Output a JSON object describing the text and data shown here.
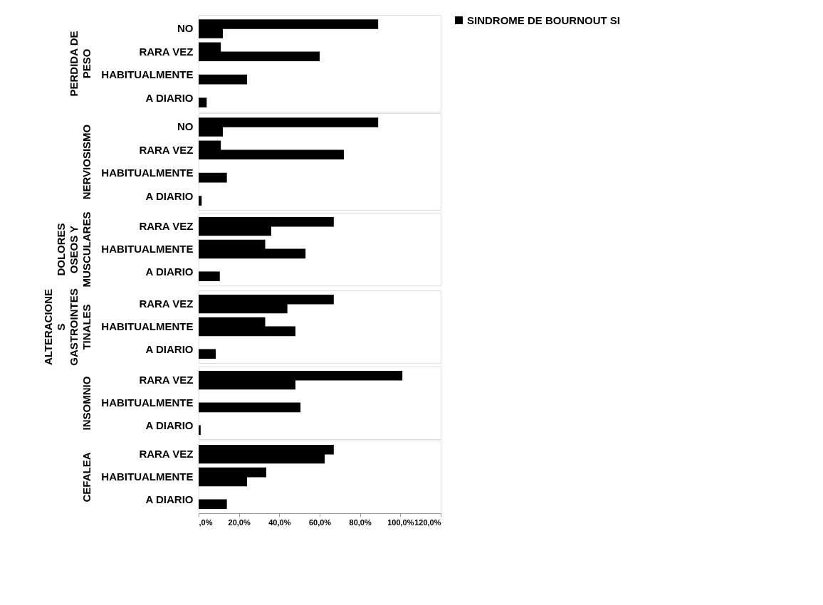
{
  "chart_data": [
    {
      "type": "bar",
      "orientation": "horizontal",
      "ylabel": "PERDIDA DE PESO",
      "categories": [
        "NO",
        "RARA VEZ",
        "HABITUALMENTE",
        "A DIARIO"
      ],
      "series": [
        {
          "color": "#000000",
          "values": [
            89,
            11,
            null,
            null
          ]
        },
        {
          "name": "SINDROME DE BOURNOUT SI",
          "color": "#000000",
          "values": [
            12,
            60,
            24,
            4
          ]
        }
      ],
      "xlim": [
        0,
        120
      ],
      "tick_labels": "y",
      "legend": "top right",
      "grid": false
    },
    {
      "type": "bar",
      "orientation": "horizontal",
      "ylabel": "NERVIOSISMO",
      "categories": [
        "NO",
        "RARA VEZ",
        "HABITUALMENTE",
        "A DIARIO"
      ],
      "series": [
        {
          "color": "#000000",
          "values": [
            89,
            11,
            null,
            null
          ]
        },
        {
          "color": "#000000",
          "values": [
            12,
            72,
            14,
            1.5
          ]
        }
      ],
      "xlim": [
        0,
        120
      ],
      "tick_labels": "y",
      "grid": false
    },
    {
      "type": "bar",
      "orientation": "horizontal",
      "ylabel": "DOLORES OSEOS Y MUSCULARES",
      "categories": [
        "RARA VEZ",
        "HABITUALMENTE",
        "A DIARIO"
      ],
      "series": [
        {
          "color": "#000000",
          "values": [
            67,
            33,
            null
          ]
        },
        {
          "color": "#000000",
          "values": [
            36,
            53,
            10.5
          ]
        }
      ],
      "xlim": [
        0,
        120
      ],
      "tick_labels": "y",
      "grid": false
    },
    {
      "type": "bar",
      "orientation": "horizontal",
      "ylabel": "ALTERACIONES GASTROINTESTINALES",
      "categories": [
        "RARA VEZ",
        "HABITUALMENTE",
        "A DIARIO"
      ],
      "series": [
        {
          "color": "#000000",
          "values": [
            67,
            33,
            null
          ]
        },
        {
          "color": "#000000",
          "values": [
            44,
            48,
            8.5
          ]
        }
      ],
      "xlim": [
        0,
        120
      ],
      "tick_labels": "y",
      "grid": false
    },
    {
      "type": "bar",
      "orientation": "horizontal",
      "ylabel": "INSOMNIO",
      "categories": [
        "RARA VEZ",
        "HABITUALMENTE",
        "A DIARIO"
      ],
      "series": [
        {
          "color": "#000000",
          "values": [
            101,
            null,
            null
          ]
        },
        {
          "color": "#000000",
          "values": [
            48,
            50.5,
            1
          ]
        }
      ],
      "xlim": [
        0,
        120
      ],
      "tick_labels": "y",
      "grid": false
    },
    {
      "type": "bar",
      "orientation": "horizontal",
      "ylabel": "CEFALEA",
      "categories": [
        "RARA VEZ",
        "HABITUALMENTE",
        "A DIARIO"
      ],
      "series": [
        {
          "color": "#000000",
          "values": [
            67,
            33.5,
            null
          ]
        },
        {
          "color": "#000000",
          "values": [
            62.5,
            24,
            14
          ]
        }
      ],
      "xlim": [
        0,
        120
      ],
      "grid": false,
      "xticks": [
        {
          "value": 0,
          "label": ",0%"
        },
        {
          "value": 20,
          "label": "20,0%"
        },
        {
          "value": 40,
          "label": "40,0%"
        },
        {
          "value": 60,
          "label": "60,0%"
        },
        {
          "value": 80,
          "label": "80,0%"
        },
        {
          "value": 100,
          "label": "100,0%"
        },
        {
          "value": 120,
          "label": "120,0%"
        }
      ]
    }
  ]
}
